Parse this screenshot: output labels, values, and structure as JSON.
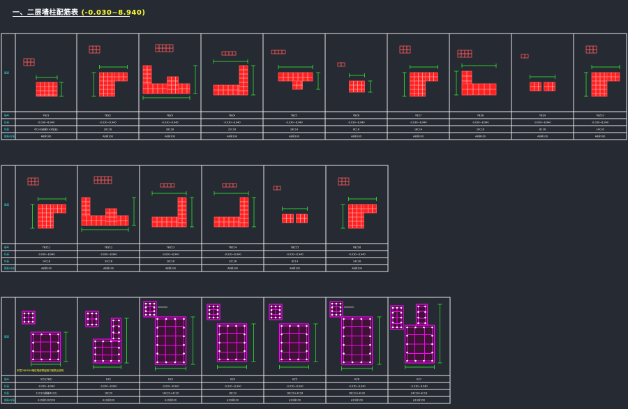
{
  "title": {
    "main": "一、二层墙柱配筋表",
    "range": "(-0.030~8.940)"
  },
  "note": "本层CNDX50暗柱端部预留缺口配筋见说明",
  "tables": [
    {
      "row_labels": [
        "截面",
        "编号",
        "标高",
        "纵筋",
        "箍筋/拉筋"
      ],
      "columns": [
        {
          "shape": "rect",
          "no": "YBZ1",
          "elev": "-0.030~8.940",
          "zj": "6C14(全部3×3拉法)",
          "gj": "A8@100"
        },
        {
          "shape": "T",
          "no": "YBZ2",
          "elev": "-0.030~8.940",
          "zj": "20C16",
          "gj": "A8@100"
        },
        {
          "shape": "T-wide",
          "no": "YBZ3",
          "elev": "-0.030~8.940",
          "zj": "28C18",
          "gj": "A8@100"
        },
        {
          "shape": "L",
          "no": "YBZ4",
          "elev": "-0.030~8.940",
          "zj": "22C16",
          "gj": "A8@100"
        },
        {
          "shape": "T-inv",
          "no": "YBZ5",
          "elev": "-0.030~8.940",
          "zj": "18C14",
          "gj": "A8@100"
        },
        {
          "shape": "square",
          "no": "YBZ6",
          "elev": "-0.030~8.940",
          "zj": "8C16",
          "gj": "A8@100"
        },
        {
          "shape": "T",
          "no": "YBZ7",
          "elev": "-0.030~8.940",
          "zj": "18C14",
          "gj": "A8@100"
        },
        {
          "shape": "L-bar",
          "no": "YBZ8",
          "elev": "-0.030~8.940",
          "zj": "20C16",
          "gj": "A8@100"
        },
        {
          "shape": "twin",
          "no": "YBZ9",
          "elev": "-0.030~8.940",
          "zj": "8C16",
          "gj": "A8@100"
        },
        {
          "shape": "T",
          "no": "YBZ10",
          "elev": "-0.030~8.940",
          "zj": "14C16",
          "gj": "A8@100"
        }
      ]
    },
    {
      "row_labels": [
        "截面",
        "编号",
        "标高",
        "纵筋",
        "箍筋/拉筋"
      ],
      "columns": [
        {
          "shape": "T",
          "no": "YBZ11",
          "elev": "-0.030~8.940",
          "zj": "14C16",
          "gj": "A8@100"
        },
        {
          "shape": "T-wide",
          "no": "YBZ12",
          "elev": "-0.030~8.940",
          "zj": "32C16",
          "gj": "A8@100"
        },
        {
          "shape": "L",
          "no": "YBZ13",
          "elev": "-0.030~8.940",
          "zj": "20C16",
          "gj": "A8@100"
        },
        {
          "shape": "L",
          "no": "YBZ14",
          "elev": "-0.030~8.940",
          "zj": "22C16",
          "gj": "A8@100"
        },
        {
          "shape": "twin",
          "no": "YBZ15",
          "elev": "-0.030~8.940",
          "zj": "8C14",
          "gj": "A8@100"
        },
        {
          "shape": "T",
          "no": "YBZ16",
          "elev": "-0.030~8.940",
          "zj": "14C16",
          "gj": "A8@100"
        }
      ]
    },
    {
      "row_labels": [
        "截面",
        "编号",
        "标高",
        "纵筋",
        "箍筋/拉筋"
      ],
      "columns": [
        {
          "shape": "mag",
          "no": "KZ1(YBZ)",
          "elev": "-0.030~8.940",
          "zj": "12C20(角部4C22)",
          "gj": "A10@100/200"
        },
        {
          "shape": "mag-L",
          "no": "KZ2",
          "elev": "-0.030~8.940",
          "zj": "16C20",
          "gj": "A10@100"
        },
        {
          "shape": "mag-tall",
          "no": "KZ3",
          "elev": "-0.030~8.940",
          "zj": "16C22+4C20",
          "gj": "A10@100"
        },
        {
          "shape": "mag-grid",
          "no": "KZ4",
          "elev": "-0.030~8.940",
          "zj": "16C22",
          "gj": "A10@100"
        },
        {
          "shape": "mag-grid",
          "no": "KZ5",
          "elev": "-0.030~8.940",
          "zj": "16C20+4C18",
          "gj": "A10@100"
        },
        {
          "shape": "mag-tall",
          "no": "KZ6",
          "elev": "-0.030~8.940",
          "zj": "16C22+4C20",
          "gj": "A10@100"
        },
        {
          "shape": "mag-T",
          "no": "KZ7",
          "elev": "-0.030~8.940",
          "zj": "24C20+4C18",
          "gj": "A10@100"
        }
      ]
    }
  ],
  "colors": {
    "background": "#262a33",
    "table_line": "#e8e8e8",
    "row_label": "#33e0e0",
    "section_fill": "#ff2020",
    "section_stroke": "#ff5a5a",
    "stirrup": "#ff00ff",
    "dimension": "#33ff33",
    "title_highlight": "#ffff33"
  }
}
